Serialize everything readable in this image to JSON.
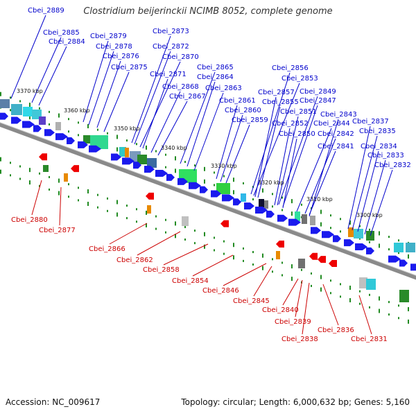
{
  "title": "Clostridium beijerinckii NCIMB 8052, complete genome",
  "footer": {
    "accession": "Accession: NC_009617",
    "info": "Topology: circular; Length: 6,000,632 bp; Genes: 5,160"
  },
  "ticks": [
    "3370 kbp",
    "3360 kbp",
    "3350 kbp",
    "3340 kbp",
    "3330 kbp",
    "3320 kbp",
    "3310 kbp",
    "3300 kbp"
  ],
  "top_labels": [
    "Cbei_2889",
    "Cbei_2885",
    "Cbei_2884",
    "Cbei_2879",
    "Cbei_2878",
    "Cbei_2876",
    "Cbei_2875",
    "Cbei_2873",
    "Cbei_2872",
    "Cbei_2870",
    "Cbei_2871",
    "Cbei_2868",
    "Cbei_2867",
    "Cbei_2865",
    "Cbei_2864",
    "Cbei_2863",
    "Cbei_2861",
    "Cbei_2860",
    "Cbei_2859",
    "Cbei_2856",
    "Cbei_2853",
    "Cbei_2857",
    "Cbei_2855",
    "Cbei_2849",
    "Cbei_2847",
    "Cbei_2851",
    "Cbei_2843",
    "Cbei_2852",
    "Cbei_2844",
    "Cbei_2850",
    "Cbei_2842",
    "Cbei_2841",
    "Cbei_2837",
    "Cbei_2835",
    "Cbei_2834",
    "Cbei_2833",
    "Cbei_2832"
  ],
  "bottom_labels": [
    "Cbei_2880",
    "Cbei_2877",
    "Cbei_2866",
    "Cbei_2862",
    "Cbei_2858",
    "Cbei_2854",
    "Cbei_2846",
    "Cbei_2845",
    "Cbei_2840",
    "Cbei_2839",
    "Cbei_2838",
    "Cbei_2836",
    "Cbei_2831"
  ],
  "colors": {
    "top_label": "#0000cc",
    "bottom_label": "#cc0000",
    "forward_gene": "#1a1aee",
    "reverse_gene": "#ee0000",
    "backbone": "#8a8a8a",
    "dots": "#228b22"
  }
}
